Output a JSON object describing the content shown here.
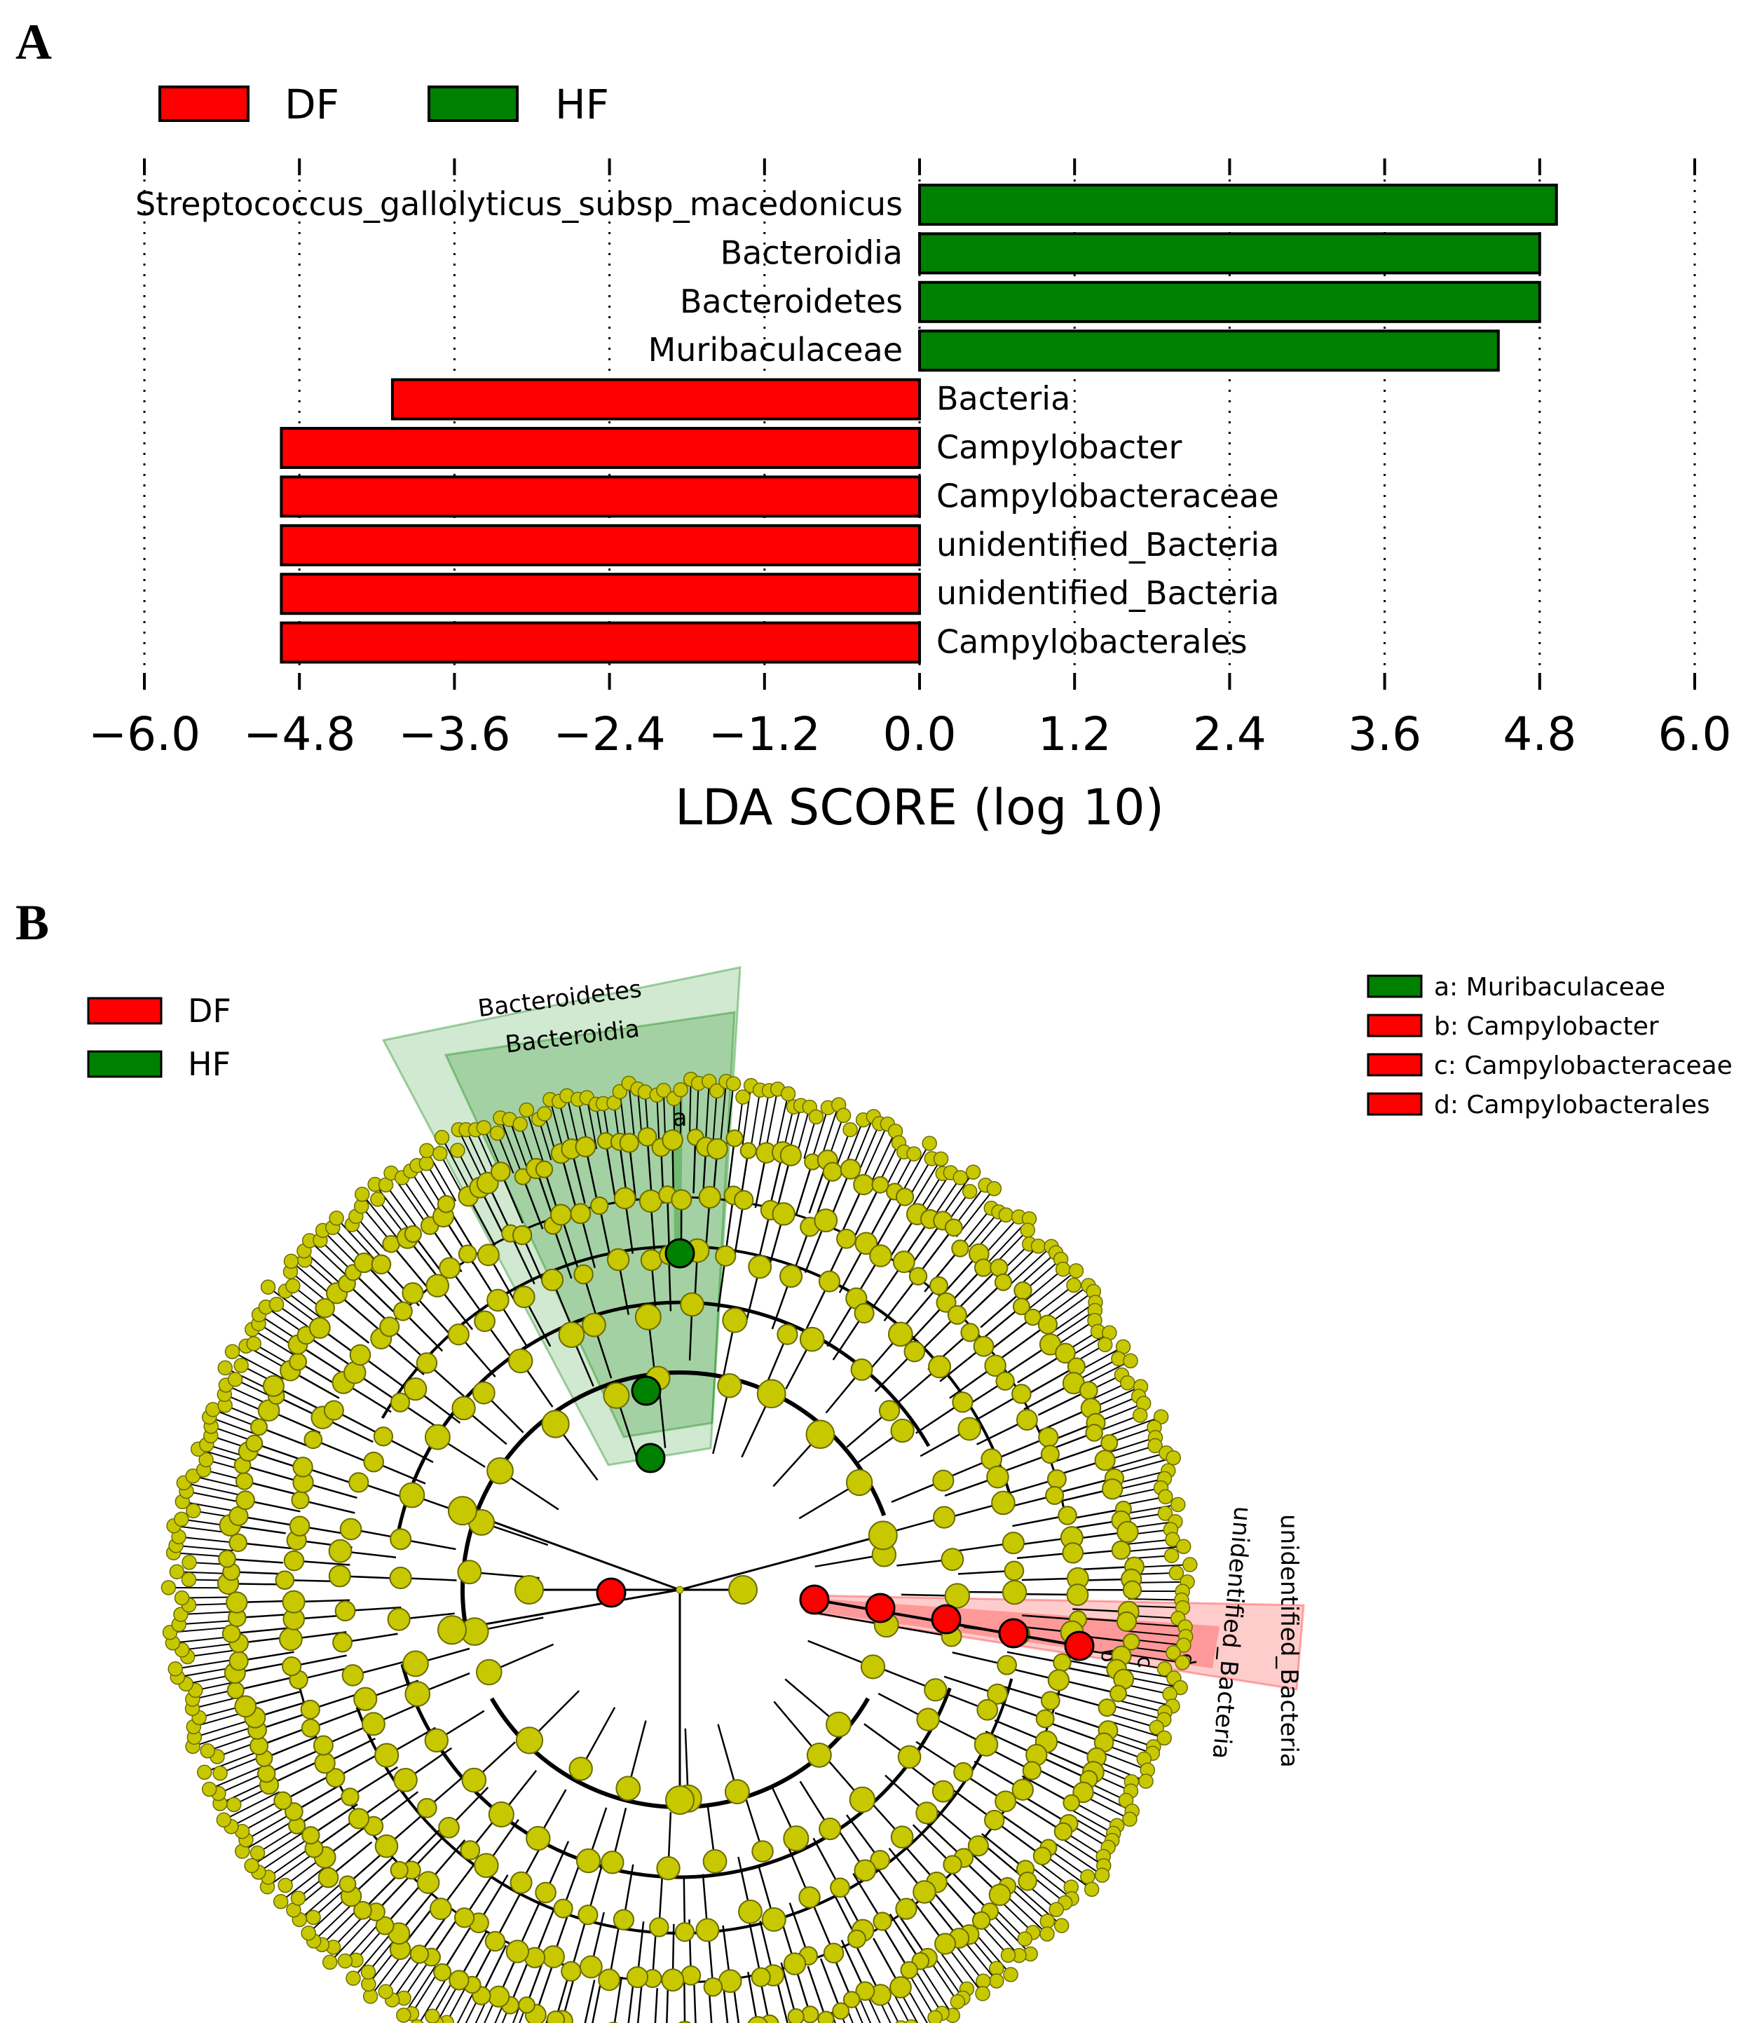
{
  "panelA": {
    "label": "A",
    "legend": [
      {
        "name": "DF",
        "color": "#ff0000"
      },
      {
        "name": "HF",
        "color": "#008000"
      }
    ]
  },
  "panelB": {
    "label": "B",
    "legend": [
      {
        "name": "DF",
        "color": "#ff0000"
      },
      {
        "name": "HF",
        "color": "#008000"
      }
    ],
    "key": [
      {
        "text": "a: Muribaculaceae",
        "color": "#008000"
      },
      {
        "text": "b: Campylobacter",
        "color": "#ff0000"
      },
      {
        "text": "c: Campylobacteraceae",
        "color": "#ff0000"
      },
      {
        "text": "d: Campylobacterales",
        "color": "#ff0000"
      }
    ],
    "clade_labels": {
      "green_outer": "Bacteroidetes",
      "green_inner": "Bacteroidia",
      "green_leaf": "a",
      "red_outer": "unidentified_Bacteria",
      "red_inner": "unidentified_Bacteria",
      "red_b": "b",
      "red_c": "c",
      "red_d": "d"
    },
    "colors": {
      "node": "#c8c800",
      "node_edge": "#6b6b00",
      "green": "#008000",
      "red": "#ff0000"
    }
  },
  "chart_data": {
    "type": "bar",
    "orientation": "horizontal",
    "xlabel": "LDA SCORE (log 10)",
    "xlim": [
      -6.0,
      6.0
    ],
    "xticks": [
      -6.0,
      -4.8,
      -3.6,
      -2.4,
      -1.2,
      0.0,
      1.2,
      2.4,
      3.6,
      4.8,
      6.0
    ],
    "xtick_labels": [
      "−6.0",
      "−4.8",
      "−3.6",
      "−2.4",
      "−1.2",
      "0.0",
      "1.2",
      "2.4",
      "3.6",
      "4.8",
      "6.0"
    ],
    "grid": "vertical dotted",
    "legend_position": "top-left",
    "categories": [
      "Streptococcus_gallolyticus_subsp_macedonicus",
      "Bacteroidia",
      "Bacteroidetes",
      "Muribaculaceae",
      "Bacteria",
      "Campylobacter",
      "Campylobacteraceae",
      "unidentified_Bacteria",
      "unidentified_Bacteria",
      "Campylobacterales"
    ],
    "values": [
      4.93,
      4.8,
      4.8,
      4.48,
      -4.08,
      -4.94,
      -4.94,
      -4.94,
      -4.94,
      -4.94
    ],
    "groups": [
      "HF",
      "HF",
      "HF",
      "HF",
      "DF",
      "DF",
      "DF",
      "DF",
      "DF",
      "DF"
    ]
  }
}
